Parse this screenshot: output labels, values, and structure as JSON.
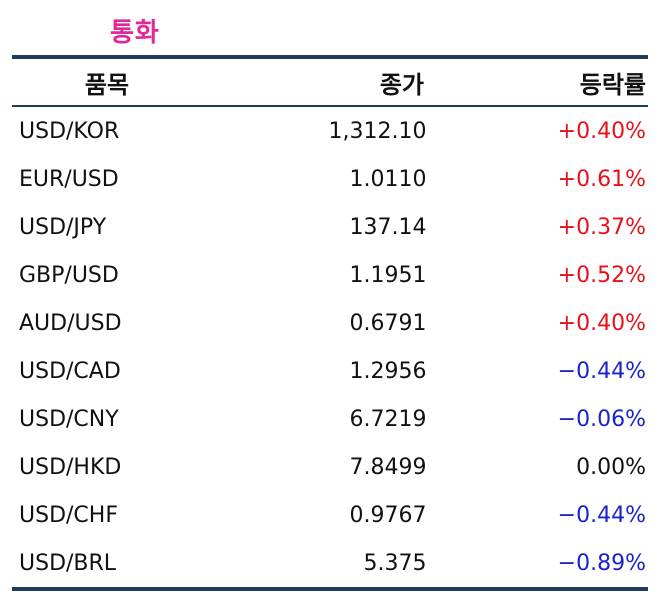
{
  "title": "통화",
  "columns": {
    "name": "품목",
    "close": "종가",
    "change": "등락률"
  },
  "colors": {
    "title": "#e0289b",
    "up": "#e8111b",
    "down": "#1a23c9",
    "rule": "#1f3b5e"
  },
  "rows": [
    {
      "name": "USD/KOR",
      "close": "1,312.10",
      "change": "+0.40%",
      "trend": "up"
    },
    {
      "name": "EUR/USD",
      "close": "1.0110",
      "change": "+0.61%",
      "trend": "up"
    },
    {
      "name": "USD/JPY",
      "close": "137.14",
      "change": "+0.37%",
      "trend": "up"
    },
    {
      "name": "GBP/USD",
      "close": "1.1951",
      "change": "+0.52%",
      "trend": "up"
    },
    {
      "name": "AUD/USD",
      "close": "0.6791",
      "change": "+0.40%",
      "trend": "up"
    },
    {
      "name": "USD/CAD",
      "close": "1.2956",
      "change": "−0.44%",
      "trend": "down"
    },
    {
      "name": "USD/CNY",
      "close": "6.7219",
      "change": "−0.06%",
      "trend": "down"
    },
    {
      "name": "USD/HKD",
      "close": "7.8499",
      "change": "0.00%",
      "trend": "flat"
    },
    {
      "name": "USD/CHF",
      "close": "0.9767",
      "change": "−0.44%",
      "trend": "down"
    },
    {
      "name": "USD/BRL",
      "close": "5.375",
      "change": "−0.89%",
      "trend": "down"
    }
  ]
}
